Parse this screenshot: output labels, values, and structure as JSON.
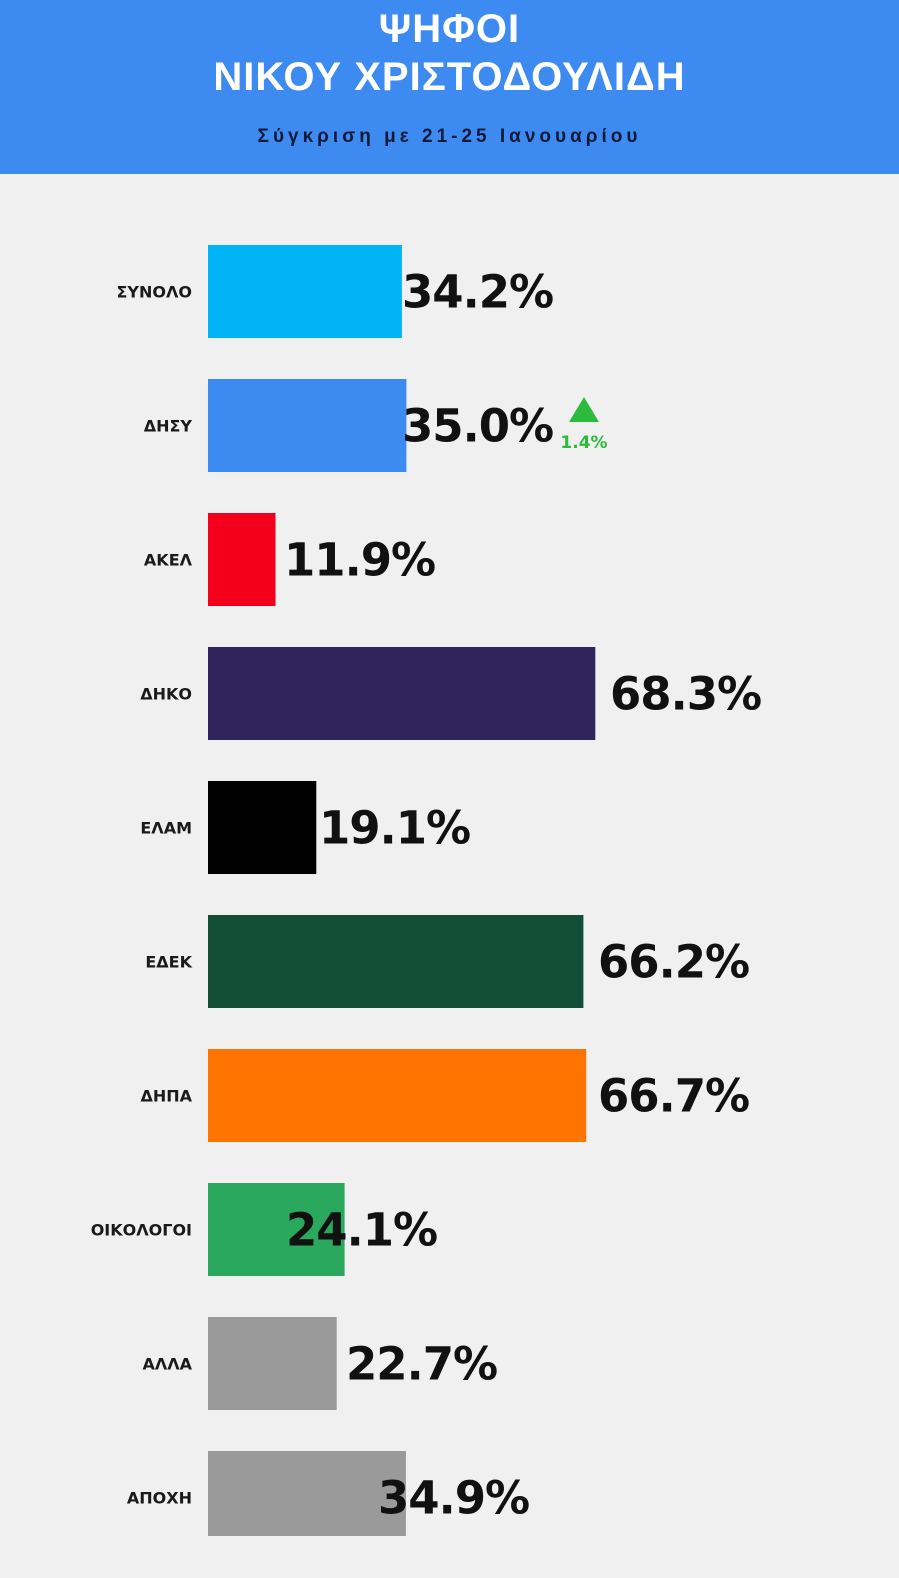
{
  "header": {
    "title_line1": "ΨΗΦΟΙ",
    "title_line2": "ΝΙΚΟΥ ΧΡΙΣΤΟΔΟΥΛΙΔΗ",
    "subtitle": "Σύγκριση με 21-25 Ιανουαρίου"
  },
  "chart_data": {
    "type": "bar",
    "orientation": "horizontal",
    "title": "ΨΗΦΟΙ ΝΙΚΟΥ ΧΡΙΣΤΟΔΟΥΛΙΔΗ",
    "subtitle": "Σύγκριση με 21-25 Ιανουαρίου",
    "categories": [
      "ΣΥΝΟΛΟ",
      "ΔΗΣΥ",
      "ΑΚΕΛ",
      "ΔΗΚΟ",
      "ΕΛΑΜ",
      "ΕΔΕΚ",
      "ΔΗΠΑ",
      "ΟΙΚΟΛΟΓΟΙ",
      "ΑΛΛΑ",
      "ΑΠΟΧΗ"
    ],
    "values": [
      34.2,
      35.0,
      11.9,
      68.3,
      19.1,
      66.2,
      66.7,
      24.1,
      22.7,
      34.9
    ],
    "value_labels": [
      "34.2%",
      "35.0%",
      "11.9%",
      "68.3%",
      "19.1%",
      "66.2%",
      "66.7%",
      "24.1%",
      "22.7%",
      "34.9%"
    ],
    "colors": [
      "#00b4f5",
      "#3d8af0",
      "#f5001c",
      "#2f255c",
      "#000000",
      "#114d37",
      "#ff7300",
      "#29a85e",
      "#9a9a9a",
      "#9a9a9a"
    ],
    "changes": [
      null,
      {
        "direction": "up",
        "label": "1.4%",
        "color": "#2dbb3c"
      },
      null,
      null,
      null,
      null,
      null,
      null,
      null,
      null
    ],
    "xlim": [
      0,
      100
    ],
    "grid": false,
    "legend": "none"
  }
}
